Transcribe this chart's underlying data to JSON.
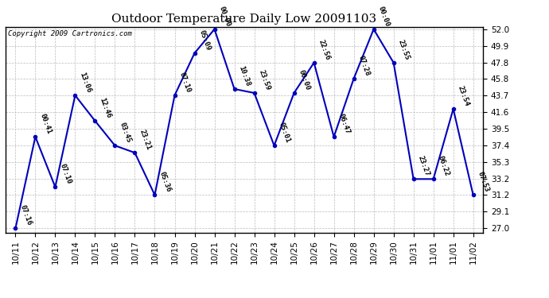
{
  "title": "Outdoor Temperature Daily Low 20091103",
  "copyright": "Copyright 2009 Cartronics.com",
  "x_labels": [
    "10/11",
    "10/12",
    "10/13",
    "10/14",
    "10/15",
    "10/16",
    "10/17",
    "10/18",
    "10/19",
    "10/20",
    "10/21",
    "10/22",
    "10/23",
    "10/24",
    "10/25",
    "10/26",
    "10/27",
    "10/28",
    "10/29",
    "10/30",
    "10/31",
    "11/01",
    "11/01",
    "11/02"
  ],
  "y_values": [
    27.0,
    38.5,
    32.2,
    43.7,
    40.5,
    37.4,
    36.5,
    31.2,
    43.7,
    49.0,
    52.0,
    44.5,
    44.0,
    37.4,
    44.0,
    47.8,
    38.5,
    45.8,
    52.0,
    47.8,
    33.2,
    33.2,
    42.0,
    31.2
  ],
  "time_labels": [
    "07:16",
    "00:41",
    "07:10",
    "13:06",
    "12:46",
    "03:45",
    "23:21",
    "05:36",
    "07:10",
    "05:09",
    "00:00",
    "10:38",
    "23:59",
    "05:01",
    "00:00",
    "22:56",
    "06:47",
    "07:28",
    "00:00",
    "23:55",
    "23:27",
    "06:22",
    "23:54",
    "07:53"
  ],
  "y_ticks": [
    27.0,
    29.1,
    31.2,
    33.2,
    35.3,
    37.4,
    39.5,
    41.6,
    43.7,
    45.8,
    47.8,
    49.9,
    52.0
  ],
  "y_min": 27.0,
  "y_max": 52.0,
  "line_color": "#0000bb",
  "marker_color": "#0000bb",
  "bg_color": "#ffffff",
  "grid_color": "#bbbbbb",
  "title_fontsize": 11,
  "copyright_fontsize": 6.5,
  "label_fontsize": 6.5,
  "tick_label_fontsize": 7.5
}
